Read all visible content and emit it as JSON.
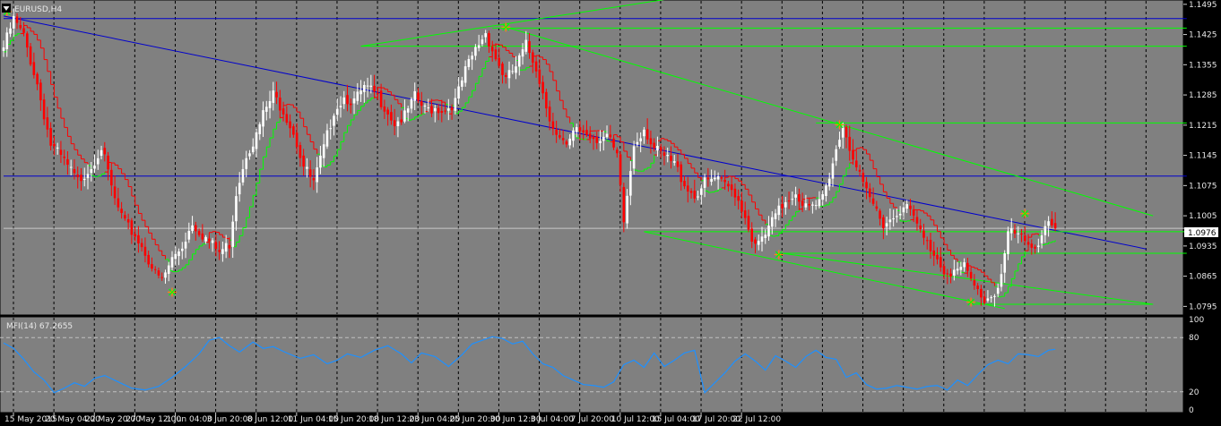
{
  "symbol_label": "EURUSD,H4",
  "indicator_label": "MFI(14) 67.2655",
  "current_price_label": "1.0976",
  "colors": {
    "background": "#808080",
    "bull": "#ffffff",
    "bear": "#ff0000",
    "trend_blue": "#0000cd",
    "channel_green": "#00ff00",
    "support_red": "#ff0000",
    "mfi": "#1e90ff",
    "grid": "#000000"
  },
  "chart_data": [
    {
      "type": "candlestick",
      "title": "EURUSD,H4",
      "ylim": [
        1.0775,
        1.1505
      ],
      "price_ticks": [
        "1.1495",
        "1.1425",
        "1.1355",
        "1.1285",
        "1.1215",
        "1.1145",
        "1.1075",
        "1.1005",
        "1.0935",
        "1.0865",
        "1.0795"
      ],
      "time_ticks": [
        "15 May 2015",
        "20 May 04:00",
        "22 May 20:00",
        "27 May 12:00",
        "1 Jun 04:00",
        "3 Jun 20:00",
        "8 Jun 12:00",
        "11 Jun 04:00",
        "15 Jun 20:00",
        "18 Jun 12:00",
        "23 Jun 04:00",
        "25 Jun 20:00",
        "30 Jun 12:00",
        "3 Jul 04:00",
        "7 Jul 20:00",
        "10 Jul 12:00",
        "15 Jul 04:00",
        "17 Jul 20:00",
        "22 Jul 12:00"
      ],
      "close_path": [
        [
          0,
          1.1395
        ],
        [
          3,
          1.146
        ],
        [
          6,
          1.142
        ],
        [
          10,
          1.131
        ],
        [
          14,
          1.117
        ],
        [
          18,
          1.113
        ],
        [
          22,
          1.1085
        ],
        [
          26,
          1.112
        ],
        [
          29,
          1.1165
        ],
        [
          33,
          1.104
        ],
        [
          36,
          1.0985
        ],
        [
          39,
          1.096
        ],
        [
          42,
          1.092
        ],
        [
          45,
          1.087
        ],
        [
          47,
          1.0855
        ],
        [
          50,
          1.0905
        ],
        [
          53,
          1.0935
        ],
        [
          56,
          1.099
        ],
        [
          58,
          1.097
        ],
        [
          61,
          1.0945
        ],
        [
          64,
          1.092
        ],
        [
          67,
          1.094
        ],
        [
          69,
          1.106
        ],
        [
          72,
          1.115
        ],
        [
          75,
          1.119
        ],
        [
          77,
          1.124
        ],
        [
          80,
          1.1285
        ],
        [
          83,
          1.125
        ],
        [
          86,
          1.12
        ],
        [
          89,
          1.112
        ],
        [
          92,
          1.108
        ],
        [
          95,
          1.116
        ],
        [
          98,
          1.125
        ],
        [
          101,
          1.128
        ],
        [
          104,
          1.127
        ],
        [
          107,
          1.13
        ],
        [
          110,
          1.129
        ],
        [
          113,
          1.126
        ],
        [
          116,
          1.122
        ],
        [
          119,
          1.1235
        ],
        [
          122,
          1.128
        ],
        [
          125,
          1.125
        ],
        [
          128,
          1.1255
        ],
        [
          131,
          1.125
        ],
        [
          134,
          1.127
        ],
        [
          137,
          1.134
        ],
        [
          140,
          1.139
        ],
        [
          143,
          1.143
        ],
        [
          146,
          1.137
        ],
        [
          149,
          1.132
        ],
        [
          152,
          1.135
        ],
        [
          155,
          1.14
        ],
        [
          158,
          1.135
        ],
        [
          161,
          1.126
        ],
        [
          164,
          1.119
        ],
        [
          167,
          1.116
        ],
        [
          170,
          1.121
        ],
        [
          173,
          1.1195
        ],
        [
          176,
          1.1185
        ],
        [
          179,
          1.119
        ],
        [
          182,
          1.114
        ],
        [
          184,
          1.099
        ],
        [
          187,
          1.117
        ],
        [
          190,
          1.121
        ],
        [
          193,
          1.116
        ],
        [
          196,
          1.114
        ],
        [
          199,
          1.1125
        ],
        [
          202,
          1.108
        ],
        [
          205,
          1.105
        ],
        [
          208,
          1.108
        ],
        [
          211,
          1.109
        ],
        [
          214,
          1.1075
        ],
        [
          217,
          1.106
        ],
        [
          220,
          1.1005
        ],
        [
          223,
          1.093
        ],
        [
          226,
          1.096
        ],
        [
          229,
          1.1005
        ],
        [
          232,
          1.104
        ],
        [
          235,
          1.106
        ],
        [
          238,
          1.1025
        ],
        [
          241,
          1.102
        ],
        [
          244,
          1.107
        ],
        [
          247,
          1.116
        ],
        [
          249,
          1.1215
        ],
        [
          252,
          1.114
        ],
        [
          255,
          1.107
        ],
        [
          258,
          1.103
        ],
        [
          261,
          1.099
        ],
        [
          264,
          1.1
        ],
        [
          267,
          1.1035
        ],
        [
          270,
          1.1
        ],
        [
          273,
          1.095
        ],
        [
          276,
          1.092
        ],
        [
          279,
          1.088
        ],
        [
          282,
          1.0875
        ],
        [
          285,
          1.0885
        ],
        [
          288,
          1.084
        ],
        [
          291,
          1.081
        ],
        [
          294,
          1.0825
        ],
        [
          296,
          1.087
        ],
        [
          298,
          1.0965
        ],
        [
          301,
          1.096
        ],
        [
          304,
          1.093
        ],
        [
          307,
          1.0945
        ],
        [
          310,
          1.1
        ],
        [
          312,
          1.0976
        ]
      ],
      "trendlines": [
        {
          "color": "blue",
          "points": [
            [
              0,
              1.1468
            ],
            [
              339,
              1.0928
            ]
          ]
        },
        {
          "color": "blue",
          "points": [
            [
              0,
              1.1462
            ],
            [
              351,
              1.1462
            ]
          ]
        },
        {
          "color": "blue",
          "points": [
            [
              0,
              1.1097
            ],
            [
              351,
              1.1097
            ]
          ]
        },
        {
          "color": "green",
          "points": [
            [
              106,
              1.1398
            ],
            [
              201,
              1.1512
            ]
          ]
        },
        {
          "color": "green",
          "points": [
            [
              106,
              1.1398
            ],
            [
              351,
              1.1398
            ]
          ]
        },
        {
          "color": "green",
          "points": [
            [
              145,
              1.144
            ],
            [
              351,
              1.144
            ]
          ]
        },
        {
          "color": "green",
          "points": [
            [
              150,
              1.144
            ],
            [
              341,
              1.1005
            ]
          ]
        },
        {
          "color": "green",
          "points": [
            [
              241,
              1.122
            ],
            [
              351,
              1.122
            ]
          ]
        },
        {
          "color": "green",
          "points": [
            [
              190,
              1.0968
            ],
            [
              351,
              1.0968
            ]
          ]
        },
        {
          "color": "green",
          "points": [
            [
              190,
              1.0968
            ],
            [
              297,
              1.079
            ]
          ]
        },
        {
          "color": "green",
          "points": [
            [
              231,
              1.0918
            ],
            [
              351,
              1.0918
            ]
          ]
        },
        {
          "color": "green",
          "points": [
            [
              231,
              1.0918
            ],
            [
              341,
              1.08
            ]
          ]
        },
        {
          "color": "green",
          "points": [
            [
              288,
              1.08
            ],
            [
              341,
              1.08
            ]
          ]
        },
        {
          "color": "gray",
          "points": [
            [
              0,
              1.0976
            ],
            [
              351,
              1.0976
            ]
          ]
        }
      ],
      "fractal_marks": [
        {
          "x": 1,
          "y": 1.1478
        },
        {
          "x": 50,
          "y": 1.0828
        },
        {
          "x": 149,
          "y": 1.1442
        },
        {
          "x": 230,
          "y": 1.0915
        },
        {
          "x": 248,
          "y": 1.1216
        },
        {
          "x": 287,
          "y": 1.0805
        },
        {
          "x": 303,
          "y": 1.101
        }
      ]
    },
    {
      "type": "line",
      "title": "MFI(14) 67.2655",
      "ylim": [
        0,
        100
      ],
      "y_ticks": [
        "100",
        "80",
        "20",
        "0"
      ],
      "levels": [
        80,
        20
      ],
      "series": [
        {
          "name": "MFI(14)",
          "values": [
            [
              0,
              74
            ],
            [
              3,
              68
            ],
            [
              6,
              56
            ],
            [
              9,
              42
            ],
            [
              12,
              33
            ],
            [
              15,
              19
            ],
            [
              18,
              24
            ],
            [
              21,
              30
            ],
            [
              24,
              26
            ],
            [
              27,
              35
            ],
            [
              30,
              38
            ],
            [
              34,
              31
            ],
            [
              38,
              24
            ],
            [
              42,
              22
            ],
            [
              46,
              26
            ],
            [
              50,
              36
            ],
            [
              54,
              48
            ],
            [
              58,
              62
            ],
            [
              61,
              77
            ],
            [
              64,
              80
            ],
            [
              67,
              71
            ],
            [
              70,
              64
            ],
            [
              74,
              75
            ],
            [
              77,
              68
            ],
            [
              80,
              70
            ],
            [
              84,
              63
            ],
            [
              88,
              57
            ],
            [
              92,
              61
            ],
            [
              96,
              51
            ],
            [
              99,
              55
            ],
            [
              102,
              62
            ],
            [
              106,
              58
            ],
            [
              110,
              66
            ],
            [
              114,
              71
            ],
            [
              118,
              62
            ],
            [
              121,
              52
            ],
            [
              124,
              63
            ],
            [
              128,
              59
            ],
            [
              132,
              48
            ],
            [
              136,
              61
            ],
            [
              139,
              73
            ],
            [
              142,
              77
            ],
            [
              145,
              81
            ],
            [
              148,
              79
            ],
            [
              151,
              73
            ],
            [
              154,
              76
            ],
            [
              157,
              62
            ],
            [
              160,
              51
            ],
            [
              163,
              47
            ],
            [
              166,
              38
            ],
            [
              169,
              33
            ],
            [
              172,
              28
            ],
            [
              175,
              27
            ],
            [
              178,
              25
            ],
            [
              181,
              31
            ],
            [
              184,
              50
            ],
            [
              187,
              55
            ],
            [
              190,
              47
            ],
            [
              193,
              63
            ],
            [
              196,
              48
            ],
            [
              199,
              55
            ],
            [
              202,
              63
            ],
            [
              205,
              66
            ],
            [
              208,
              19
            ],
            [
              211,
              30
            ],
            [
              214,
              41
            ],
            [
              217,
              54
            ],
            [
              220,
              62
            ],
            [
              223,
              54
            ],
            [
              226,
              44
            ],
            [
              229,
              60
            ],
            [
              232,
              54
            ],
            [
              235,
              47
            ],
            [
              238,
              59
            ],
            [
              241,
              66
            ],
            [
              244,
              58
            ],
            [
              247,
              56
            ],
            [
              250,
              36
            ],
            [
              253,
              41
            ],
            [
              256,
              28
            ],
            [
              259,
              23
            ],
            [
              262,
              24
            ],
            [
              265,
              27
            ],
            [
              268,
              25
            ],
            [
              271,
              23
            ],
            [
              274,
              26
            ],
            [
              277,
              27
            ],
            [
              280,
              22
            ],
            [
              283,
              33
            ],
            [
              286,
              27
            ],
            [
              289,
              39
            ],
            [
              292,
              50
            ],
            [
              295,
              55
            ],
            [
              298,
              51
            ],
            [
              301,
              62
            ],
            [
              304,
              61
            ],
            [
              307,
              59
            ],
            [
              310,
              66
            ],
            [
              312,
              67
            ]
          ]
        }
      ]
    }
  ]
}
